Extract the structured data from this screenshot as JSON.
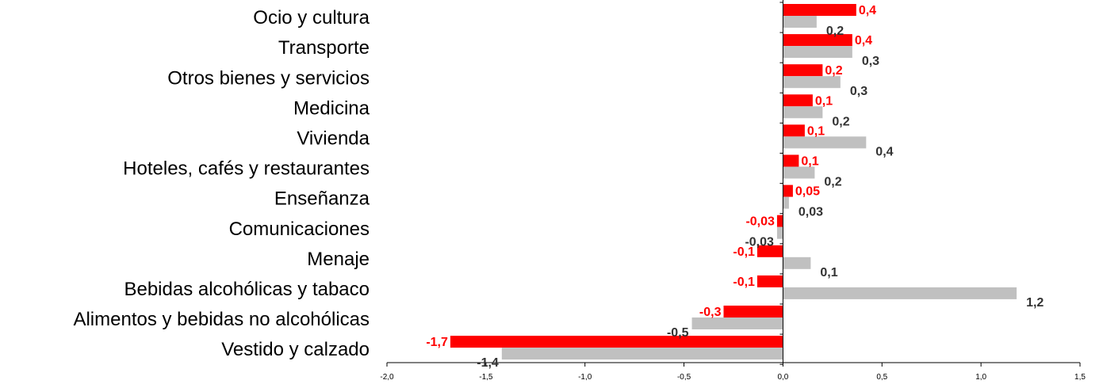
{
  "chart_data": {
    "type": "bar",
    "orientation": "horizontal",
    "categories": [
      "Ocio y cultura",
      "Transporte",
      "Otros bienes y servicios",
      "Medicina",
      "Vivienda",
      "Hoteles, cafés y restaurantes",
      "Enseñanza",
      "Comunicaciones",
      "Menaje",
      "Bebidas alcohólicas y tabaco",
      "Alimentos y bebidas no alcohólicas",
      "Vestido y calzado"
    ],
    "series": [
      {
        "color": "#ff0000",
        "values": [
          0.37,
          0.35,
          0.2,
          0.15,
          0.11,
          0.08,
          0.05,
          -0.03,
          -0.13,
          -0.13,
          -0.3,
          -1.68
        ],
        "labels": [
          "0,4",
          "0,4",
          "0,2",
          "0,1",
          "0,1",
          "0,1",
          "0,05",
          "-0,03",
          "-0,1",
          "-0,1",
          "-0,3",
          "-1,7"
        ]
      },
      {
        "color": "#c0c0c0",
        "values": [
          0.17,
          0.35,
          0.29,
          0.2,
          0.42,
          0.16,
          0.03,
          -0.03,
          0.14,
          1.18,
          -0.46,
          -1.42
        ],
        "labels": [
          "0,2",
          "0,3",
          "0,3",
          "0,2",
          "0,4",
          "0,2",
          "0,03",
          "-0,03",
          "0,1",
          "1,2",
          "-0,5",
          "-1,4"
        ]
      }
    ],
    "xlim": [
      -2.0,
      1.5
    ],
    "xticks": [
      -2.0,
      -1.5,
      -1.0,
      -0.5,
      0.0,
      0.5,
      1.0,
      1.5
    ],
    "xtick_labels": [
      "-2,0",
      "-1,5",
      "-1,0",
      "-0,5",
      "0,0",
      "0,5",
      "1,0",
      "1,5"
    ],
    "grid": false,
    "legend": "none"
  }
}
